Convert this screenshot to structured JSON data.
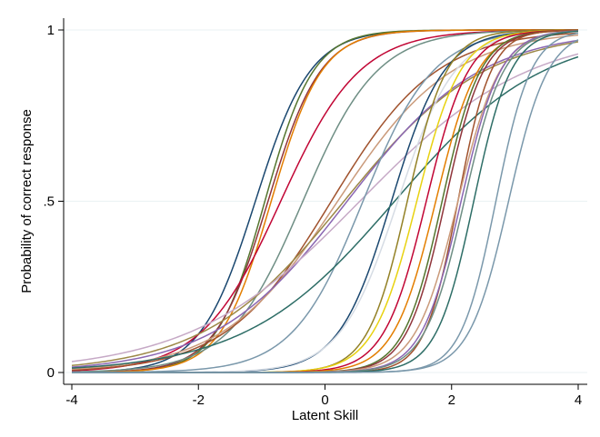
{
  "chart_data": {
    "type": "line",
    "xlabel": "Latent Skill",
    "ylabel": "Probability of correct response",
    "xlim": [
      -4,
      4
    ],
    "ylim": [
      0,
      1
    ],
    "x_ticks": [
      {
        "value": -4,
        "label": "-4"
      },
      {
        "value": -2,
        "label": "-2"
      },
      {
        "value": 0,
        "label": "0"
      },
      {
        "value": 2,
        "label": "2"
      },
      {
        "value": 4,
        "label": "4"
      }
    ],
    "y_ticks": [
      {
        "value": 0,
        "label": "0"
      },
      {
        "value": 0.5,
        "label": ".5"
      },
      {
        "value": 1,
        "label": "1"
      }
    ],
    "grid": true,
    "series": [
      {
        "a": 2.3,
        "b": -1.1,
        "color": "#1a476f"
      },
      {
        "a": 2.6,
        "b": -0.95,
        "color": "#55752f"
      },
      {
        "a": 2.4,
        "b": -0.9,
        "color": "#90353b"
      },
      {
        "a": 2.5,
        "b": -0.85,
        "color": "#e37e00"
      },
      {
        "a": 1.6,
        "b": -0.7,
        "color": "#c10534"
      },
      {
        "a": 1.7,
        "b": -0.35,
        "color": "#6e8e84"
      },
      {
        "a": 1.2,
        "b": 0.1,
        "color": "#a0522d"
      },
      {
        "a": 1.1,
        "b": 0.2,
        "color": "#ca9a7a"
      },
      {
        "a": 0.9,
        "b": 0.3,
        "color": "#9c8847"
      },
      {
        "a": 0.95,
        "b": 0.35,
        "color": "#8a66b2"
      },
      {
        "a": 0.75,
        "b": 0.55,
        "color": "#c6a9c6"
      },
      {
        "a": 1.8,
        "b": 0.6,
        "color": "#7a98ab"
      },
      {
        "a": 2.4,
        "b": 1.05,
        "color": "#1a476f"
      },
      {
        "a": 0.85,
        "b": 1.1,
        "color": "#2d6d66"
      },
      {
        "a": 2.2,
        "b": 1.15,
        "color": "#d6dce4"
      },
      {
        "a": 3.2,
        "b": 1.3,
        "color": "#938126"
      },
      {
        "a": 2.9,
        "b": 1.45,
        "color": "#e8d210"
      },
      {
        "a": 3.0,
        "b": 1.6,
        "color": "#c10534"
      },
      {
        "a": 3.0,
        "b": 1.75,
        "color": "#e37e00"
      },
      {
        "a": 3.3,
        "b": 1.85,
        "color": "#55752f"
      },
      {
        "a": 3.3,
        "b": 1.9,
        "color": "#90353b"
      },
      {
        "a": 3.8,
        "b": 2.1,
        "color": "#a0522d"
      },
      {
        "a": 3.0,
        "b": 2.1,
        "color": "#ca9a7a"
      },
      {
        "a": 3.2,
        "b": 2.15,
        "color": "#8a66b2"
      },
      {
        "a": 3.2,
        "b": 2.2,
        "color": "#6e8e84"
      },
      {
        "a": 3.4,
        "b": 2.35,
        "color": "#2d6d66"
      },
      {
        "a": 3.6,
        "b": 2.7,
        "color": "#7a98ab"
      },
      {
        "a": 3.2,
        "b": 2.9,
        "color": "#7a98ab"
      }
    ]
  }
}
